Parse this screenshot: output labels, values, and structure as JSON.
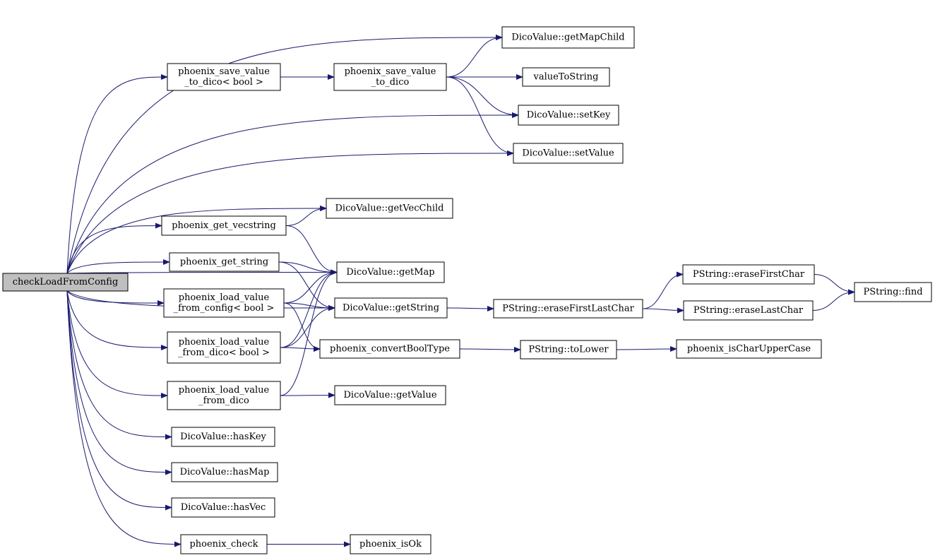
{
  "nodes": [
    {
      "label": [
        "checkLoadFromConfig"
      ]
    },
    {
      "label": [
        "DicoValue::getMapChild"
      ]
    },
    {
      "label": [
        "phoenix_save_value",
        "_to_dico< bool >"
      ]
    },
    {
      "label": [
        "phoenix_save_value",
        "_to_dico"
      ]
    },
    {
      "label": [
        "valueToString"
      ]
    },
    {
      "label": [
        "DicoValue::setKey"
      ]
    },
    {
      "label": [
        "DicoValue::setValue"
      ]
    },
    {
      "label": [
        "DicoValue::getVecChild"
      ]
    },
    {
      "label": [
        "phoenix_get_vecstring"
      ]
    },
    {
      "label": [
        "phoenix_get_string"
      ]
    },
    {
      "label": [
        "DicoValue::getMap"
      ]
    },
    {
      "label": [
        "phoenix_load_value",
        "_from_config< bool >"
      ]
    },
    {
      "label": [
        "DicoValue::getString"
      ]
    },
    {
      "label": [
        "phoenix_load_value",
        "_from_dico< bool >"
      ]
    },
    {
      "label": [
        "phoenix_convertBoolType"
      ]
    },
    {
      "label": [
        "phoenix_load_value",
        "_from_dico"
      ]
    },
    {
      "label": [
        "DicoValue::getValue"
      ]
    },
    {
      "label": [
        "DicoValue::hasKey"
      ]
    },
    {
      "label": [
        "DicoValue::hasMap"
      ]
    },
    {
      "label": [
        "DicoValue::hasVec"
      ]
    },
    {
      "label": [
        "phoenix_check"
      ]
    },
    {
      "label": [
        "phoenix_isOk"
      ]
    },
    {
      "label": [
        "PString::eraseFirstLastChar"
      ]
    },
    {
      "label": [
        "PString::toLower"
      ]
    },
    {
      "label": [
        "phoenix_isCharUpperCase"
      ]
    },
    {
      "label": [
        "PString::eraseFirstChar"
      ]
    },
    {
      "label": [
        "PString::eraseLastChar"
      ]
    },
    {
      "label": [
        "PString::find"
      ]
    }
  ]
}
